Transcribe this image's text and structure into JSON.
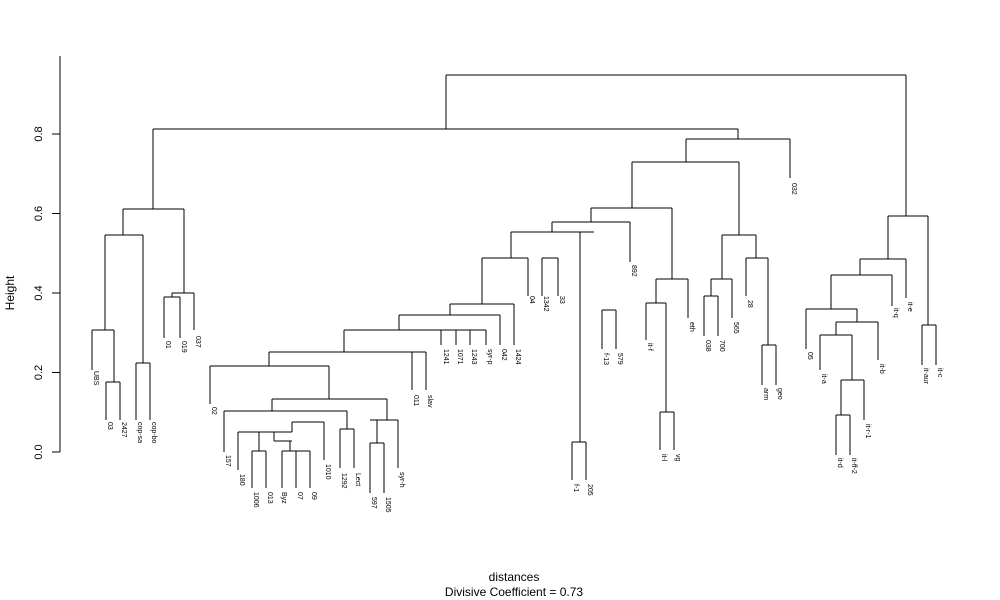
{
  "chart_data": {
    "type": "dendrogram",
    "title": "",
    "xlabel": "distances",
    "ylabel": "Height",
    "subtitle": "Divisive Coefficient =  0.73",
    "ylim": [
      0,
      1.0
    ],
    "yticks": [
      0.0,
      0.2,
      0.4,
      0.6,
      0.8
    ],
    "ytick_labels": [
      "0.0",
      "0.2",
      "0.4",
      "0.6",
      "0.8"
    ],
    "leaves": [
      "UBS",
      "03",
      "2427",
      "cop-sa",
      "cop-bo",
      "01",
      "019",
      "037",
      "02",
      "157",
      "180",
      "1006",
      "013",
      "Byz",
      "07",
      "09",
      "1010",
      "1292",
      "Lect",
      "597",
      "1505",
      "syr-h",
      "011",
      "slav",
      "1241",
      "1071",
      "1243",
      "syr-p",
      "042",
      "1424",
      "04",
      "1342",
      "33",
      "f-1",
      "205",
      "f-13",
      "579",
      "892",
      "it-f",
      "it-l",
      "vg",
      "eth",
      "038",
      "700",
      "565",
      "28",
      "arm",
      "geo",
      "032",
      "05",
      "it-a",
      "it-d",
      "it-ff-2",
      "it-r-1",
      "it-b",
      "it-q",
      "it-e",
      "it-aur",
      "it-c"
    ],
    "merges": [
      [
        0,
        0.22,
        [
          0
        ]
      ],
      [
        2427,
        0.17,
        [
          1,
          2
        ]
      ],
      [
        2,
        0.3,
        [
          0,
          1
        ]
      ],
      [
        3,
        0.22,
        [
          3,
          4
        ]
      ],
      [
        4,
        0.54,
        [
          2,
          3
        ]
      ],
      [
        5,
        0.385,
        [
          5,
          6
        ]
      ],
      [
        6,
        0.4,
        [
          5,
          7
        ]
      ],
      [
        7,
        0.61,
        [
          4,
          6
        ]
      ]
    ],
    "links": [
      {
        "h": 0.54,
        "l": [
          0.0,
          0.3
        ],
        "r": [
          3.5,
          0.22
        ]
      },
      {
        "h": 0.3,
        "l": [
          0,
          0.22
        ],
        "r": [
          1.5,
          0.17
        ]
      },
      {
        "h": 0.17,
        "l": [
          1,
          0.1
        ],
        "r": [
          2,
          0.1
        ]
      },
      {
        "h": 0.22,
        "l": [
          3,
          0.1
        ],
        "r": [
          4,
          0.1
        ]
      },
      {
        "h": 0.61,
        "l": [
          1.75,
          0.54
        ],
        "r": [
          6.25,
          0.4
        ]
      },
      {
        "h": 0.4,
        "l": [
          5.5,
          0.385
        ],
        "r": [
          7,
          0.33
        ]
      },
      {
        "h": 0.385,
        "l": [
          5,
          0.29
        ],
        "r": [
          6,
          0.29
        ]
      },
      {
        "h": 0.81,
        "l": [
          3.4,
          0.61
        ],
        "r": [
          46.7,
          0.81
        ]
      },
      {
        "h": 0.95,
        "l": [
          23.9,
          0.81
        ],
        "r": [
          55.7,
          0.59
        ]
      },
      {
        "h": 0.81,
        "l": [
          41.8,
          0.79
        ],
        "r": [
          41.8,
          0.79
        ]
      },
      {
        "h": 0.79,
        "l": [
          40.2,
          0.73
        ],
        "r": [
          48,
          0.66
        ]
      },
      {
        "h": 0.73,
        "l": [
          34.6,
          0.61
        ],
        "r": [
          45.5,
          0.545
        ]
      },
      {
        "h": 0.61,
        "l": [
          30.2,
          0.57
        ],
        "r": [
          40.4,
          0.43
        ]
      },
      {
        "h": 0.57,
        "l": [
          26.3,
          0.55
        ],
        "r": [
          37,
          0.55
        ]
      },
      {
        "h": 0.55,
        "l": [
          22.9,
          0.485
        ],
        "r": [
          31.3,
          0.55
        ]
      },
      {
        "h": 0.55,
        "l": [
          33.5,
          0.02
        ],
        "r": [
          35.5,
          0.355
        ]
      },
      {
        "h": 0.485,
        "l": [
          20.1,
          0.37
        ],
        "r": [
          30.9,
          0.485
        ]
      },
      {
        "h": 0.485,
        "l": [
          30,
          0.29
        ],
        "r": [
          32,
          0.29
        ]
      },
      {
        "h": 0.37,
        "l": [
          17.2,
          0.34
        ],
        "r": [
          29,
          0.29
        ]
      },
      {
        "h": 0.34,
        "l": [
          14.4,
          0.3
        ],
        "r": [
          27.7,
          0.29
        ]
      },
      {
        "h": 0.3,
        "l": [
          11.9,
          0.25
        ],
        "r": [
          26.5,
          0.29
        ]
      },
      {
        "h": 0.25,
        "l": [
          10.2,
          0.215
        ],
        "r": [
          22.5,
          0.25
        ]
      },
      {
        "h": 0.215,
        "l": [
          8,
          0.1
        ],
        "r": [
          14.2,
          0.135
        ]
      },
      {
        "h": 0.135,
        "l": [
          12.6,
          0.1
        ],
        "r": [
          20.2,
          0.075
        ]
      },
      {
        "h": 0.02,
        "l": [
          33,
          0.02
        ],
        "r": [
          34,
          0.02
        ]
      }
    ]
  }
}
